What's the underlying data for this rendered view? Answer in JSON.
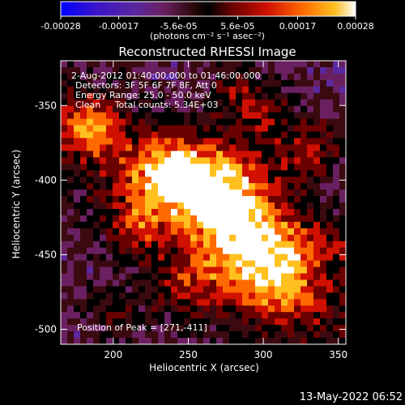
{
  "colorbar": {
    "ticks": [
      "-0.00028",
      "-0.00017",
      "-5.6e-05",
      "5.6e-05",
      "0.00017",
      "0.00028"
    ],
    "tick_values": [
      -0.00028,
      -0.00017,
      -5.6e-05,
      5.6e-05,
      0.00017,
      0.00028
    ],
    "range": [
      -0.00028,
      0.00028
    ],
    "unit_label": "(photons cm⁻² s⁻¹ asec⁻²)"
  },
  "chart_data": {
    "type": "heatmap",
    "title": "Reconstructed RHESSI Image",
    "xlabel": "Heliocentric X (arcsec)",
    "ylabel": "Heliocentric Y (arcsec)",
    "xlim": [
      165,
      355
    ],
    "ylim": [
      -510,
      -320
    ],
    "x_ticks": [
      "200",
      "250",
      "300",
      "350"
    ],
    "x_tick_values": [
      200,
      250,
      300,
      350
    ],
    "y_ticks": [
      "-350",
      "-400",
      "-450",
      "-500"
    ],
    "y_tick_values": [
      -350,
      -400,
      -450,
      -500
    ],
    "annotations": [
      "2-Aug-2012 01:40:00.000 to 01:46:00.000",
      "Detectors: 3F 5F 6F 7F 8F, Att 0",
      "Energy Range: 25.0 - 50.0 keV",
      "Clean     Total counts: 5.34E+03"
    ],
    "peak_label": "Position of Peak = [271,-411]",
    "peak": [
      271,
      -411
    ],
    "colormap": [
      "#0000ff",
      "#3a14c8",
      "#5a28a0",
      "#6a2060",
      "#3a0a10",
      "#000000",
      "#6a0000",
      "#d01000",
      "#ff6a00",
      "#ffc020",
      "#ffffff"
    ]
  },
  "footer": {
    "timestamp": "13-May-2022 06:52"
  }
}
